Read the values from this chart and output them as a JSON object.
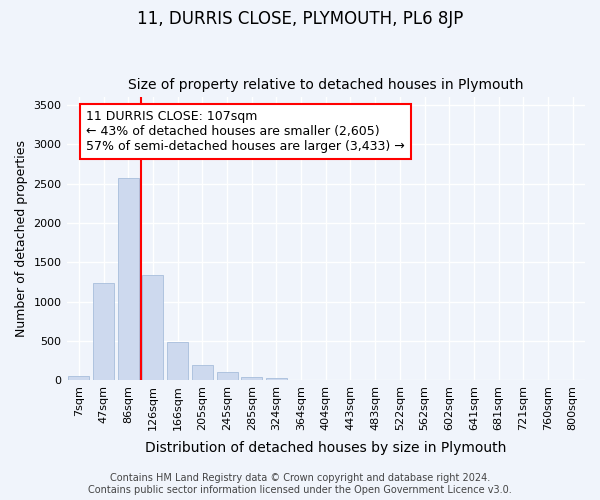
{
  "title": "11, DURRIS CLOSE, PLYMOUTH, PL6 8JP",
  "subtitle": "Size of property relative to detached houses in Plymouth",
  "xlabel": "Distribution of detached houses by size in Plymouth",
  "ylabel": "Number of detached properties",
  "bar_labels": [
    "7sqm",
    "47sqm",
    "86sqm",
    "126sqm",
    "166sqm",
    "205sqm",
    "245sqm",
    "285sqm",
    "324sqm",
    "364sqm",
    "404sqm",
    "443sqm",
    "483sqm",
    "522sqm",
    "562sqm",
    "602sqm",
    "641sqm",
    "681sqm",
    "721sqm",
    "760sqm",
    "800sqm"
  ],
  "bar_values": [
    50,
    1230,
    2570,
    1340,
    490,
    195,
    100,
    40,
    20,
    5,
    3,
    1,
    1,
    0,
    0,
    0,
    0,
    0,
    0,
    0,
    0
  ],
  "bar_color": "#cdd9ee",
  "bar_edgecolor": "#a8bedc",
  "ylim": [
    0,
    3600
  ],
  "yticks": [
    0,
    500,
    1000,
    1500,
    2000,
    2500,
    3000,
    3500
  ],
  "red_line_x": 2.5,
  "annotation_line1": "11 DURRIS CLOSE: 107sqm",
  "annotation_line2": "← 43% of detached houses are smaller (2,605)",
  "annotation_line3": "57% of semi-detached houses are larger (3,433) →",
  "footer_line1": "Contains HM Land Registry data © Crown copyright and database right 2024.",
  "footer_line2": "Contains public sector information licensed under the Open Government Licence v3.0.",
  "background_color": "#f0f4fb",
  "plot_bg_color": "#f0f4fb",
  "grid_color": "#ffffff",
  "title_fontsize": 12,
  "subtitle_fontsize": 10,
  "tick_fontsize": 8,
  "ylabel_fontsize": 9,
  "xlabel_fontsize": 10,
  "footer_fontsize": 7,
  "annotation_fontsize": 9
}
